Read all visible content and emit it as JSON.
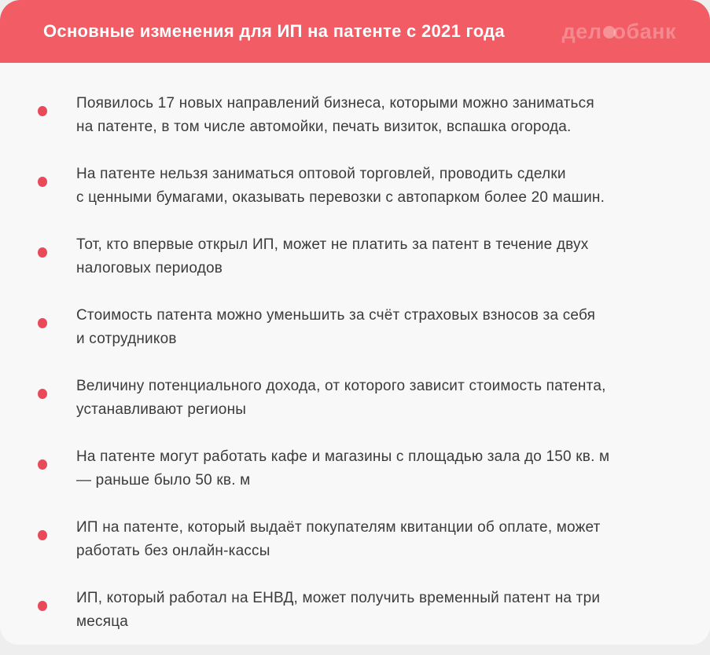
{
  "header": {
    "title": "Основные изменения для ИП на патенте с 2021 года",
    "logo": {
      "text_before_icon": "дел",
      "icon": "filled-circle-icon",
      "text_after_icon": "обанк"
    }
  },
  "list": {
    "bullet_icon": "red-dot-icon",
    "items": [
      {
        "lines": [
          "Появилось 17 новых направлений бизнеса, которыми можно заниматься",
          "на патенте, в том числе автомойки, печать визиток, вспашка огорода."
        ]
      },
      {
        "lines": [
          "На патенте нельзя заниматься оптовой торговлей, проводить сделки",
          "с ценными бумагами, оказывать перевозки с автопарком более 20 машин."
        ]
      },
      {
        "lines": [
          "Тот, кто впервые открыл ИП, может не платить за патент в течение двух",
          "налоговых периодов"
        ]
      },
      {
        "lines": [
          "Стоимость патента можно уменьшить за счёт страховых взносов за себя",
          "и сотрудников"
        ]
      },
      {
        "lines": [
          "Величину потенциального дохода, от которого зависит стоимость патента,",
          "устанавливают регионы"
        ]
      },
      {
        "lines": [
          "На патенте могут работать кафе и магазины с площадью зала до 150 кв. м",
          "— раньше было 50 кв. м"
        ]
      },
      {
        "lines": [
          "ИП на патенте, который выдаёт покупателям квитанции об оплате, может",
          "работать без онлайн-кассы"
        ]
      },
      {
        "lines": [
          "ИП, который работал на ЕНВД, может получить временный патент на три",
          "месяца"
        ]
      }
    ]
  },
  "colors": {
    "header_background": "#f25c64",
    "card_background": "#f8f8f8",
    "page_background": "#eeeeee",
    "bullet": "#e84a5a",
    "text": "#3b3b3b",
    "title_text": "#ffffff",
    "logo_text": "rgba(255,255,255,0.28)"
  }
}
